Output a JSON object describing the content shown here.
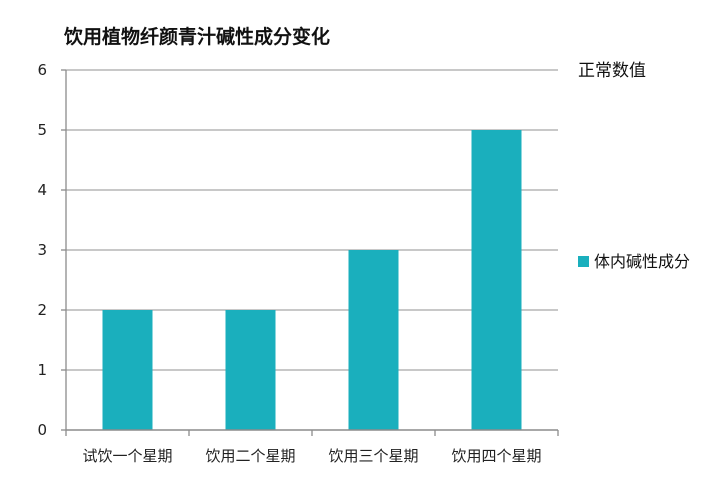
{
  "chart_data": {
    "type": "bar",
    "title": "饮用植物纤颜青汁碱性成分变化",
    "categories": [
      "试饮一个星期",
      "饮用二个星期",
      "饮用三个星期",
      "饮用四个星期"
    ],
    "series": [
      {
        "name": "体内碱性成分",
        "values": [
          2,
          2,
          3,
          5
        ]
      }
    ],
    "ylim": [
      0,
      6
    ],
    "yticks": [
      0,
      1,
      2,
      3,
      4,
      5,
      6
    ],
    "grid": true,
    "legend": "right",
    "annotations": [
      {
        "text": "正常数值",
        "at_y": 6
      }
    ],
    "colors": {
      "bar": "#1aafbd",
      "grid": "#a6a6a6",
      "axis": "#8c8c8c"
    }
  }
}
